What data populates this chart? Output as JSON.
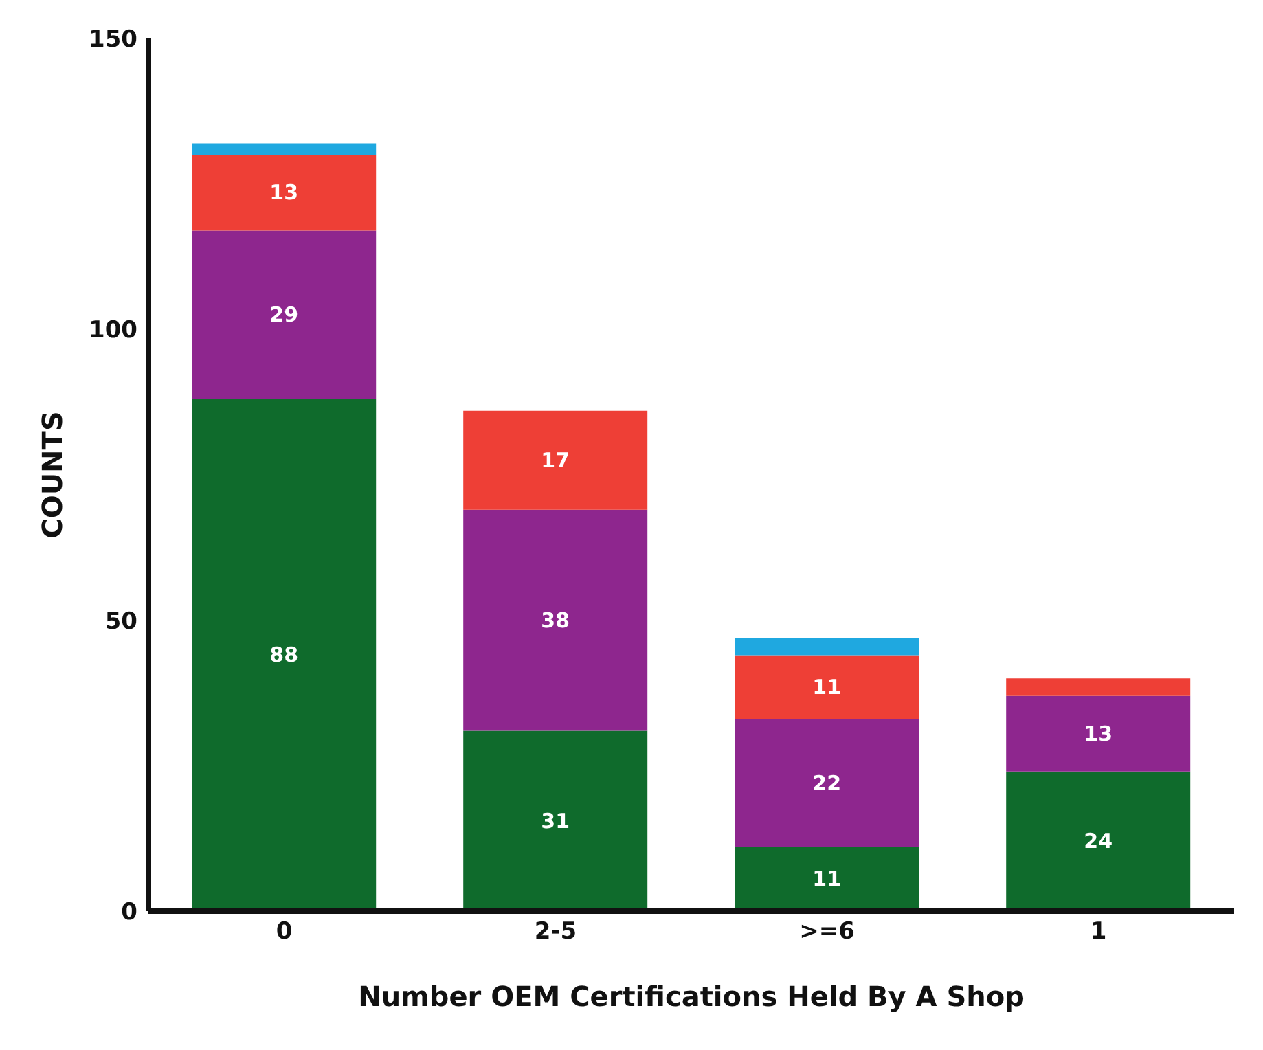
{
  "chart_data": {
    "type": "bar",
    "stacked": true,
    "xlabel": "Number OEM Certifications Held By A Shop",
    "ylabel": "COUNTS",
    "categories": [
      "0",
      "2-5",
      ">=6",
      "1"
    ],
    "ylim": [
      0,
      150
    ],
    "yticks": [
      0,
      50,
      100,
      150
    ],
    "grid": false,
    "legend": false,
    "series": [
      {
        "color": "#0f6b2c",
        "values": [
          88,
          31,
          11,
          24
        ],
        "value_labels": [
          "88",
          "31",
          "11",
          "24"
        ]
      },
      {
        "color": "#8e268e",
        "values": [
          29,
          38,
          22,
          13
        ],
        "value_labels": [
          "29",
          "38",
          "22",
          "13"
        ]
      },
      {
        "color": "#ee3f36",
        "values": [
          13,
          17,
          11,
          3
        ],
        "value_labels": [
          "13",
          "17",
          "11",
          null
        ]
      },
      {
        "color": "#1fa8e0",
        "values": [
          2,
          null,
          3,
          null
        ],
        "value_labels": [
          null,
          null,
          null,
          null
        ]
      }
    ]
  }
}
